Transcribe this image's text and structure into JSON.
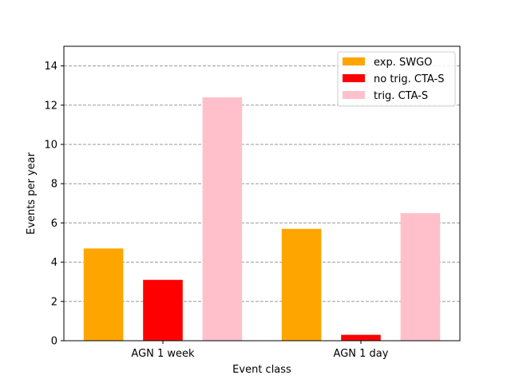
{
  "chart_data": {
    "type": "bar",
    "categories": [
      "AGN 1 week",
      "AGN 1 day"
    ],
    "series": [
      {
        "name": "exp. SWGO",
        "values": [
          4.7,
          5.7
        ],
        "color": "#ffa500"
      },
      {
        "name": "no trig. CTA-S",
        "values": [
          3.1,
          0.3
        ],
        "color": "#ff0000"
      },
      {
        "name": "trig. CTA-S",
        "values": [
          12.4,
          6.5
        ],
        "color": "#ffc0cb"
      }
    ],
    "title": "",
    "xlabel": "Event class",
    "ylabel": "Events per year",
    "ylim": [
      0,
      15
    ],
    "yticks": [
      0,
      2,
      4,
      6,
      8,
      10,
      12,
      14
    ],
    "grid": "y-dashed",
    "legend_position": "top-right"
  }
}
